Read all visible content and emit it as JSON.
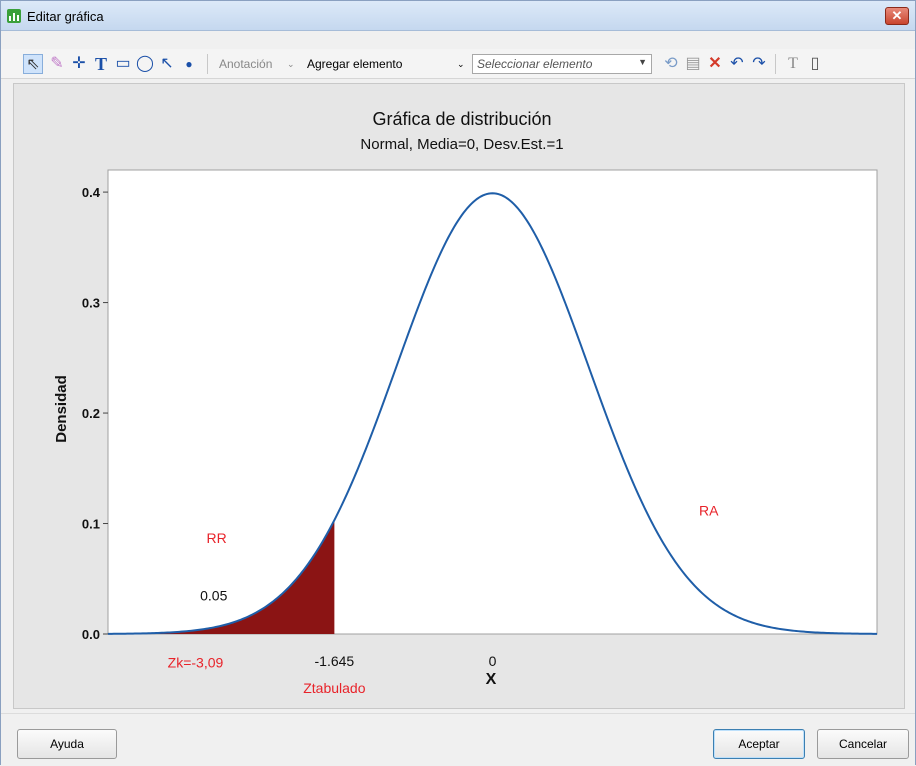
{
  "window": {
    "title": "Editar gráfica"
  },
  "toolbar": {
    "annotation_label": "Anotación",
    "add_element_label": "Agregar elemento",
    "select_placeholder": "Seleccionar elemento",
    "text_tool_glyph": "T"
  },
  "chart_data": {
    "type": "area",
    "title": "Gráfica de distribución",
    "subtitle": "Normal, Media=0, Desv.Est.=1",
    "xlabel": "X",
    "ylabel": "Densidad",
    "distribution": {
      "name": "normal",
      "mean": 0,
      "sd": 1
    },
    "xlim": [
      -4,
      4
    ],
    "ylim": [
      0,
      0.42
    ],
    "yticks": [
      0.0,
      0.1,
      0.2,
      0.3,
      0.4
    ],
    "ytick_labels": [
      "0.0",
      "0.1",
      "0.2",
      "0.3",
      "0.4"
    ],
    "xticks": [
      -1.645,
      0
    ],
    "xtick_labels": [
      "-1.645",
      "0"
    ],
    "shaded_region": {
      "from": -4,
      "to": -1.645,
      "area_label": "0.05",
      "area_x": -2.9,
      "area_y": 0.035,
      "color": "#8b1414"
    },
    "curve_color": "#1f5ea8",
    "annotations": [
      {
        "text": "RR",
        "x": -2.87,
        "y": 0.087,
        "color": "#e8232a"
      },
      {
        "text": "RA",
        "x": 2.25,
        "y": 0.112,
        "color": "#e8232a"
      },
      {
        "text": "Zk=-3,09",
        "x": -3.09,
        "y": -0.026,
        "color": "#e8232a"
      },
      {
        "text": "Ztabulado",
        "x": -1.645,
        "y": -0.049,
        "color": "#e8232a"
      }
    ],
    "grid": false,
    "legend": "none"
  },
  "footer": {
    "help_label": "Ayuda",
    "ok_label": "Aceptar",
    "cancel_label": "Cancelar"
  }
}
